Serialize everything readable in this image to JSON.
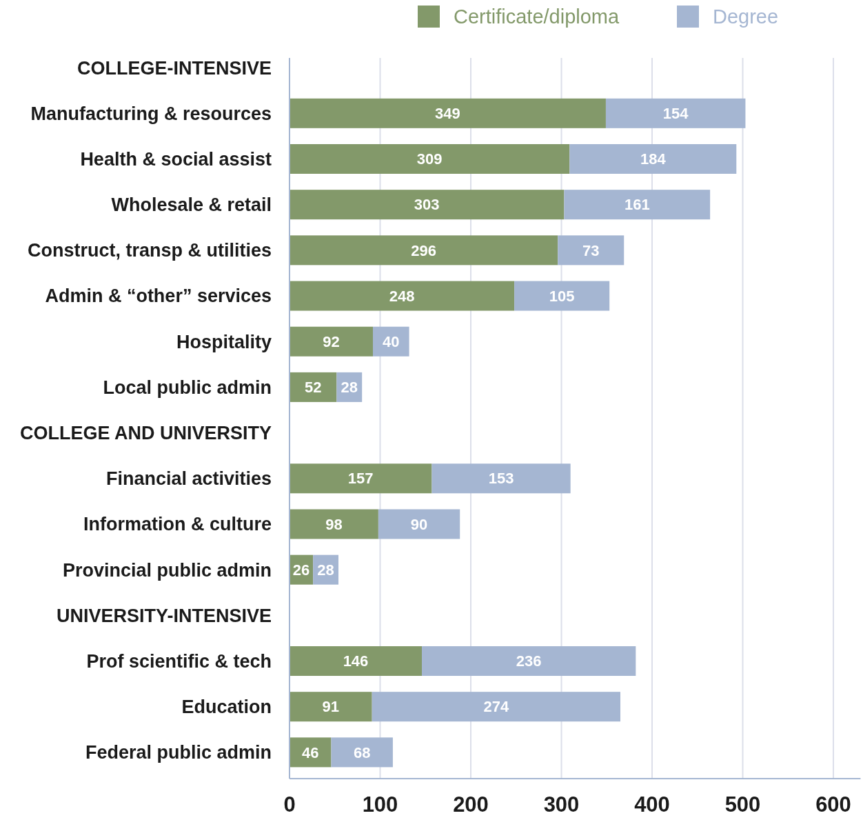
{
  "chart_data": {
    "type": "bar",
    "orientation": "horizontal",
    "stacked": true,
    "categories": [
      "COLLEGE-INTENSIVE",
      "Manufacturing & resources",
      "Health & social assist",
      "Wholesale & retail",
      "Construct, transp & utilities",
      "Admin & “other” services",
      "Hospitality",
      "Local public admin",
      "COLLEGE AND UNIVERSITY",
      "Financial activities",
      "Information & culture",
      "Provincial public admin",
      "UNIVERSITY-INTENSIVE",
      "Prof scientific & tech",
      "Education",
      "Federal public admin"
    ],
    "series": [
      {
        "name": "Certificate/diploma",
        "color": "#83996a",
        "values": [
          null,
          349,
          309,
          303,
          296,
          248,
          92,
          52,
          null,
          157,
          98,
          26,
          null,
          146,
          91,
          46
        ]
      },
      {
        "name": "Degree",
        "color": "#a5b6d2",
        "values": [
          null,
          154,
          184,
          161,
          73,
          105,
          40,
          28,
          null,
          153,
          90,
          28,
          null,
          236,
          274,
          68
        ]
      }
    ],
    "xlim": [
      0,
      630
    ],
    "xticks": [
      0,
      100,
      200,
      300,
      400,
      500,
      600
    ],
    "grid": "x",
    "legend": "top right",
    "data_labels": true
  }
}
